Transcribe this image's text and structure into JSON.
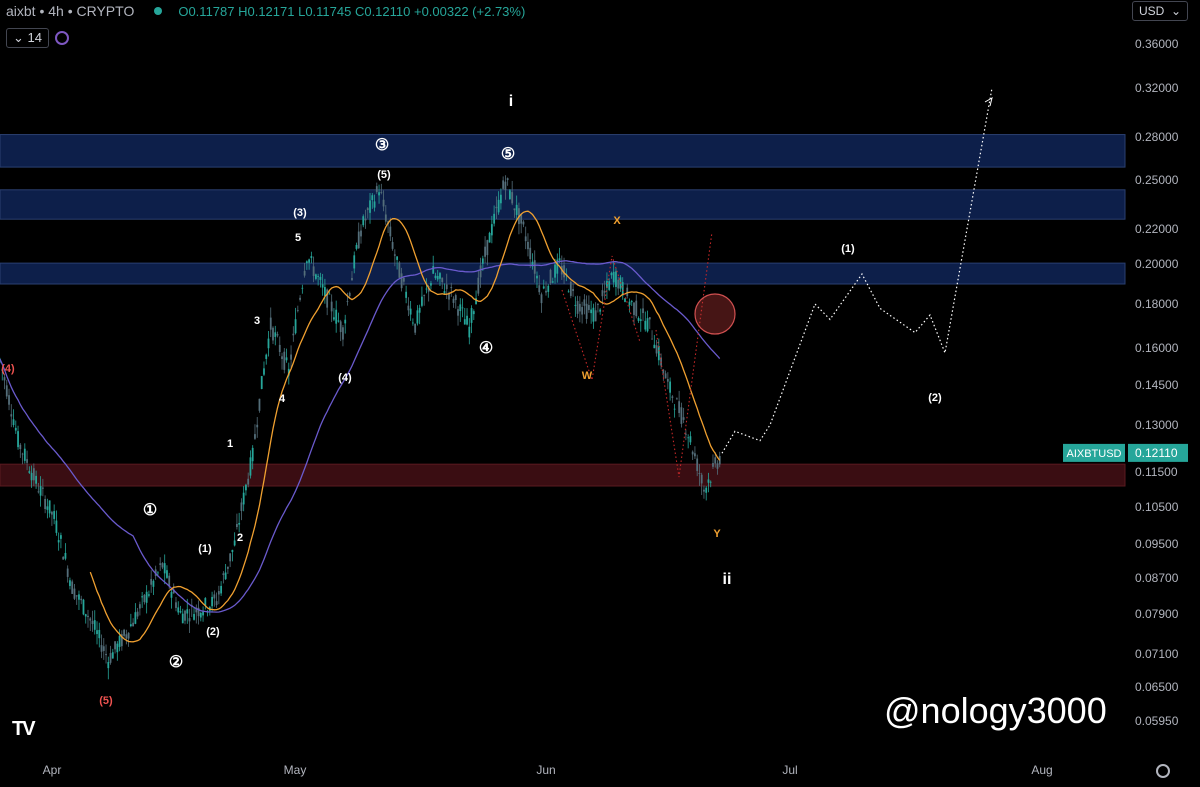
{
  "header": {
    "symbol_line": "aixbt • 4h • CRYPTO",
    "ohlc": "O0.11787  H0.12171  L0.11745  C0.12110  +0.00322 (+2.73%)",
    "indicator_value": "14",
    "currency": "USD"
  },
  "watermark": "@nology3000",
  "logo": "TV",
  "colors": {
    "up": "#26a69a",
    "down": "#546e7a",
    "ma_orange": "#f0a030",
    "ma_purple": "#6a5acd",
    "zone_blue": "#0d1f4a",
    "zone_red": "#3a0d12",
    "label_tag": "#26a69a"
  },
  "chart_data": {
    "type": "line",
    "title": "",
    "xlabel": "",
    "ylabel": "",
    "x_ticks": [
      "Apr",
      "May",
      "Jun",
      "Jul",
      "Aug"
    ],
    "y_ticks": [
      "0.36000",
      "0.32000",
      "0.28000",
      "0.25000",
      "0.22000",
      "0.20000",
      "0.18000",
      "0.16000",
      "0.14500",
      "0.13000",
      "0.11500",
      "0.10500",
      "0.09500",
      "0.08700",
      "0.07900",
      "0.07100",
      "0.06500",
      "0.05950"
    ],
    "last_price": {
      "symbol": "AIXBTUSD",
      "value": "0.12110"
    },
    "price_series_approx": [
      0.155,
      0.125,
      0.112,
      0.102,
      0.085,
      0.078,
      0.07,
      0.075,
      0.082,
      0.09,
      0.079,
      0.08,
      0.082,
      0.095,
      0.12,
      0.17,
      0.15,
      0.205,
      0.185,
      0.168,
      0.22,
      0.245,
      0.2,
      0.17,
      0.195,
      0.185,
      0.169,
      0.21,
      0.25,
      0.22,
      0.185,
      0.2,
      0.18,
      0.175,
      0.195,
      0.18,
      0.17,
      0.145,
      0.13,
      0.11,
      0.121
    ],
    "projection_path": [
      0.121,
      0.128,
      0.125,
      0.13,
      0.18,
      0.173,
      0.195,
      0.178,
      0.167,
      0.175,
      0.158,
      0.32
    ],
    "zones": [
      {
        "name": "resistance-1",
        "top": 0.282,
        "bottom": 0.259
      },
      {
        "name": "resistance-2",
        "top": 0.244,
        "bottom": 0.226
      },
      {
        "name": "resistance-3",
        "top": 0.2005,
        "bottom": 0.19
      },
      {
        "name": "support",
        "top": 0.1175,
        "bottom": 0.111
      }
    ],
    "wave_labels": [
      {
        "text": "(4)",
        "color": "#ef5350"
      },
      {
        "text": "(5)",
        "color": "#ef5350"
      },
      {
        "text": "①",
        "color": "#ffffff"
      },
      {
        "text": "②",
        "color": "#ffffff"
      },
      {
        "text": "(1)",
        "color": "#ffffff"
      },
      {
        "text": "(2)",
        "color": "#ffffff"
      },
      {
        "text": "1",
        "color": "#ffffff"
      },
      {
        "text": "2",
        "color": "#ffffff"
      },
      {
        "text": "3",
        "color": "#ffffff"
      },
      {
        "text": "4",
        "color": "#ffffff"
      },
      {
        "text": "5",
        "color": "#ffffff"
      },
      {
        "text": "(3)",
        "color": "#ffffff"
      },
      {
        "text": "(4)",
        "color": "#ffffff"
      },
      {
        "text": "(5)",
        "color": "#ffffff"
      },
      {
        "text": "③",
        "color": "#ffffff"
      },
      {
        "text": "④",
        "color": "#ffffff"
      },
      {
        "text": "⑤",
        "color": "#ffffff"
      },
      {
        "text": "i",
        "color": "#ffffff"
      },
      {
        "text": "W",
        "color": "#f0a030"
      },
      {
        "text": "X",
        "color": "#f0a030"
      },
      {
        "text": "Y",
        "color": "#f0a030"
      },
      {
        "text": "ii",
        "color": "#ffffff"
      },
      {
        "text": "(1)",
        "color": "#ffffff"
      },
      {
        "text": "(2)",
        "color": "#ffffff"
      }
    ]
  }
}
